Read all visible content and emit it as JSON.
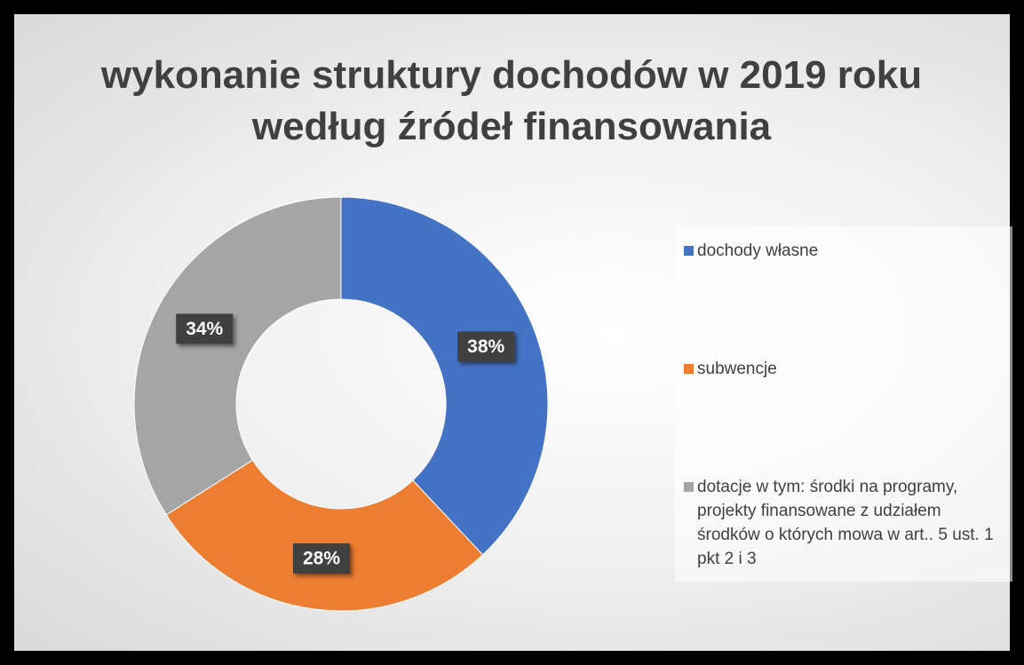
{
  "chart_data": {
    "type": "donut",
    "title": "wykonanie struktury dochodów w 2019 roku według źródeł finansowania",
    "categories": [
      "dochody własne",
      "subwencje",
      "dotacje w tym: środki na programy, projekty finansowane z udziałem środków o których mowa w art.. 5 ust. 1 pkt 2 i 3"
    ],
    "values": [
      38,
      28,
      34
    ],
    "value_labels": [
      "38%",
      "28%",
      "34%"
    ],
    "colors": [
      "#4472c4",
      "#ed7d31",
      "#a5a5a5"
    ],
    "legend": "right"
  }
}
